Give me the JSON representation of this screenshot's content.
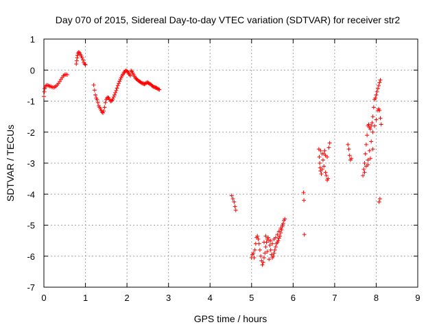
{
  "chart_data": {
    "type": "scatter",
    "title": "Day 070 of 2015, Sidereal Day-to-day VTEC variation (SDTVAR) for receiver str2",
    "xlabel": "GPS time / hours",
    "ylabel": "SDTVAR / TECUs",
    "xlim": [
      0,
      9
    ],
    "ylim": [
      -7,
      1
    ],
    "xticks": [
      0,
      1,
      2,
      3,
      4,
      5,
      6,
      7,
      8,
      9
    ],
    "yticks": [
      -7,
      -6,
      -5,
      -4,
      -3,
      -2,
      -1,
      0,
      1
    ],
    "grid": true,
    "marker": "+",
    "color": "#ff0000",
    "series": [
      {
        "name": "str2",
        "points": [
          [
            0.0,
            -0.85
          ],
          [
            0.01,
            -0.7
          ],
          [
            0.02,
            -0.6
          ],
          [
            0.03,
            -0.55
          ],
          [
            0.05,
            -0.5
          ],
          [
            0.08,
            -0.48
          ],
          [
            0.11,
            -0.5
          ],
          [
            0.14,
            -0.52
          ],
          [
            0.17,
            -0.53
          ],
          [
            0.2,
            -0.55
          ],
          [
            0.23,
            -0.56
          ],
          [
            0.26,
            -0.55
          ],
          [
            0.29,
            -0.52
          ],
          [
            0.32,
            -0.48
          ],
          [
            0.35,
            -0.43
          ],
          [
            0.38,
            -0.37
          ],
          [
            0.41,
            -0.3
          ],
          [
            0.44,
            -0.24
          ],
          [
            0.47,
            -0.18
          ],
          [
            0.5,
            -0.15
          ],
          [
            0.53,
            -0.14
          ],
          [
            0.56,
            -0.15
          ],
          [
            0.78,
            0.2
          ],
          [
            0.79,
            0.3
          ],
          [
            0.8,
            0.4
          ],
          [
            0.81,
            0.48
          ],
          [
            0.82,
            0.55
          ],
          [
            0.84,
            0.58
          ],
          [
            0.86,
            0.55
          ],
          [
            0.88,
            0.5
          ],
          [
            0.9,
            0.45
          ],
          [
            0.92,
            0.4
          ],
          [
            0.94,
            0.33
          ],
          [
            0.96,
            0.25
          ],
          [
            0.98,
            0.2
          ],
          [
            1.0,
            0.17
          ],
          [
            1.2,
            -0.48
          ],
          [
            1.22,
            -0.65
          ],
          [
            1.24,
            -0.8
          ],
          [
            1.26,
            -0.9
          ],
          [
            1.28,
            -0.95
          ],
          [
            1.3,
            -1.05
          ],
          [
            1.32,
            -1.15
          ],
          [
            1.34,
            -1.2
          ],
          [
            1.36,
            -1.25
          ],
          [
            1.38,
            -1.3
          ],
          [
            1.4,
            -1.35
          ],
          [
            1.42,
            -1.38
          ],
          [
            1.44,
            -1.32
          ],
          [
            1.46,
            -1.2
          ],
          [
            1.48,
            -1.05
          ],
          [
            1.5,
            -0.95
          ],
          [
            1.52,
            -0.9
          ],
          [
            1.54,
            -0.88
          ],
          [
            1.56,
            -0.9
          ],
          [
            1.58,
            -0.95
          ],
          [
            1.6,
            -1.0
          ],
          [
            1.62,
            -1.0
          ],
          [
            1.64,
            -0.98
          ],
          [
            1.66,
            -0.93
          ],
          [
            1.68,
            -0.87
          ],
          [
            1.7,
            -0.8
          ],
          [
            1.72,
            -0.73
          ],
          [
            1.74,
            -0.66
          ],
          [
            1.76,
            -0.58
          ],
          [
            1.78,
            -0.5
          ],
          [
            1.8,
            -0.43
          ],
          [
            1.82,
            -0.36
          ],
          [
            1.84,
            -0.3
          ],
          [
            1.86,
            -0.24
          ],
          [
            1.88,
            -0.19
          ],
          [
            1.9,
            -0.14
          ],
          [
            1.92,
            -0.1
          ],
          [
            1.94,
            -0.06
          ],
          [
            1.96,
            -0.03
          ],
          [
            1.98,
            -0.02
          ],
          [
            2.0,
            -0.03
          ],
          [
            2.02,
            -0.06
          ],
          [
            2.04,
            -0.1
          ],
          [
            2.06,
            -0.14
          ],
          [
            2.08,
            -0.18
          ],
          [
            2.1,
            -0.02
          ],
          [
            2.12,
            -0.05
          ],
          [
            2.14,
            -0.1
          ],
          [
            2.16,
            -0.15
          ],
          [
            2.18,
            -0.2
          ],
          [
            2.2,
            -0.25
          ],
          [
            2.22,
            -0.28
          ],
          [
            2.24,
            -0.3
          ],
          [
            2.26,
            -0.32
          ],
          [
            2.28,
            -0.35
          ],
          [
            2.3,
            -0.37
          ],
          [
            2.32,
            -0.38
          ],
          [
            2.34,
            -0.4
          ],
          [
            2.36,
            -0.42
          ],
          [
            2.38,
            -0.43
          ],
          [
            2.4,
            -0.44
          ],
          [
            2.42,
            -0.45
          ],
          [
            2.44,
            -0.44
          ],
          [
            2.46,
            -0.42
          ],
          [
            2.48,
            -0.4
          ],
          [
            2.5,
            -0.4
          ],
          [
            2.52,
            -0.42
          ],
          [
            2.54,
            -0.44
          ],
          [
            2.56,
            -0.45
          ],
          [
            2.58,
            -0.47
          ],
          [
            2.6,
            -0.5
          ],
          [
            2.62,
            -0.52
          ],
          [
            2.64,
            -0.54
          ],
          [
            2.66,
            -0.55
          ],
          [
            2.68,
            -0.56
          ],
          [
            2.7,
            -0.57
          ],
          [
            2.72,
            -0.58
          ],
          [
            2.74,
            -0.6
          ],
          [
            2.76,
            -0.62
          ],
          [
            2.78,
            -0.63
          ],
          [
            4.52,
            -4.05
          ],
          [
            4.55,
            -4.15
          ],
          [
            4.58,
            -4.25
          ],
          [
            4.6,
            -4.4
          ],
          [
            4.62,
            -4.52
          ],
          [
            5.0,
            -6.05
          ],
          [
            5.02,
            -5.95
          ],
          [
            5.04,
            -5.9
          ],
          [
            5.06,
            -6.05
          ],
          [
            5.08,
            -5.8
          ],
          [
            5.1,
            -5.6
          ],
          [
            5.12,
            -5.4
          ],
          [
            5.14,
            -5.35
          ],
          [
            5.16,
            -5.45
          ],
          [
            5.18,
            -5.6
          ],
          [
            5.2,
            -5.8
          ],
          [
            5.22,
            -6.0
          ],
          [
            5.24,
            -6.15
          ],
          [
            5.26,
            -6.28
          ],
          [
            5.28,
            -6.2
          ],
          [
            5.3,
            -6.05
          ],
          [
            5.32,
            -5.9
          ],
          [
            5.34,
            -5.7
          ],
          [
            5.36,
            -5.55
          ],
          [
            5.38,
            -5.45
          ],
          [
            5.4,
            -5.4
          ],
          [
            5.42,
            -5.5
          ],
          [
            5.44,
            -5.65
          ],
          [
            5.46,
            -5.8
          ],
          [
            5.48,
            -5.95
          ],
          [
            5.5,
            -6.05
          ],
          [
            5.52,
            -6.0
          ],
          [
            5.54,
            -5.9
          ],
          [
            5.56,
            -5.8
          ],
          [
            5.58,
            -5.7
          ],
          [
            5.6,
            -5.6
          ],
          [
            5.62,
            -5.55
          ],
          [
            5.64,
            -5.5
          ],
          [
            5.66,
            -5.42
          ],
          [
            5.68,
            -5.35
          ],
          [
            5.7,
            -5.25
          ],
          [
            5.72,
            -5.15
          ],
          [
            5.74,
            -5.05
          ],
          [
            5.76,
            -4.95
          ],
          [
            5.78,
            -4.85
          ],
          [
            5.8,
            -4.8
          ],
          [
            5.3,
            -5.55
          ],
          [
            5.34,
            -5.35
          ],
          [
            5.38,
            -5.85
          ],
          [
            5.42,
            -6.1
          ],
          [
            5.46,
            -5.5
          ],
          [
            5.5,
            -5.6
          ],
          [
            5.54,
            -5.45
          ],
          [
            5.58,
            -5.4
          ],
          [
            5.62,
            -5.3
          ],
          [
            5.66,
            -5.2
          ],
          [
            5.7,
            -5.1
          ],
          [
            5.74,
            -5.0
          ],
          [
            6.25,
            -3.95
          ],
          [
            6.26,
            -4.2
          ],
          [
            6.27,
            -5.3
          ],
          [
            6.62,
            -2.55
          ],
          [
            6.63,
            -2.8
          ],
          [
            6.64,
            -3.0
          ],
          [
            6.65,
            -3.15
          ],
          [
            6.66,
            -3.25
          ],
          [
            6.68,
            -3.35
          ],
          [
            6.7,
            -3.2
          ],
          [
            6.72,
            -2.9
          ],
          [
            6.74,
            -2.7
          ],
          [
            6.76,
            -2.6
          ],
          [
            6.78,
            -2.75
          ],
          [
            6.8,
            -3.4
          ],
          [
            6.82,
            -3.55
          ],
          [
            6.84,
            -3.5
          ],
          [
            6.86,
            -2.5
          ],
          [
            6.88,
            -2.35
          ],
          [
            6.66,
            -2.6
          ],
          [
            6.7,
            -2.7
          ],
          [
            6.74,
            -3.1
          ],
          [
            6.78,
            -3.3
          ],
          [
            6.82,
            -2.8
          ],
          [
            7.32,
            -2.4
          ],
          [
            7.34,
            -2.55
          ],
          [
            7.36,
            -2.75
          ],
          [
            7.38,
            -2.9
          ],
          [
            7.4,
            -2.85
          ],
          [
            7.68,
            -3.4
          ],
          [
            7.7,
            -3.2
          ],
          [
            7.72,
            -3.0
          ],
          [
            7.74,
            -2.7
          ],
          [
            7.76,
            -2.4
          ],
          [
            7.78,
            -2.1
          ],
          [
            7.8,
            -1.8
          ],
          [
            7.82,
            -1.75
          ],
          [
            7.84,
            -1.85
          ],
          [
            7.86,
            -1.9
          ],
          [
            7.88,
            -1.8
          ],
          [
            7.9,
            -1.7
          ],
          [
            7.92,
            -1.5
          ],
          [
            7.94,
            -1.2
          ],
          [
            7.96,
            -0.95
          ],
          [
            7.98,
            -0.9
          ],
          [
            8.0,
            -0.8
          ],
          [
            8.02,
            -0.7
          ],
          [
            8.04,
            -0.6
          ],
          [
            8.06,
            -0.5
          ],
          [
            8.08,
            -0.4
          ],
          [
            8.1,
            -0.32
          ],
          [
            7.72,
            -3.3
          ],
          [
            7.76,
            -3.1
          ],
          [
            7.8,
            -2.9
          ],
          [
            7.84,
            -2.6
          ],
          [
            7.88,
            -2.3
          ],
          [
            7.92,
            -2.0
          ],
          [
            7.96,
            -1.8
          ],
          [
            8.0,
            -1.6
          ],
          [
            8.04,
            -1.3
          ],
          [
            8.06,
            -1.25
          ],
          [
            8.08,
            -1.3
          ],
          [
            8.1,
            -1.55
          ],
          [
            8.12,
            -1.75
          ],
          [
            8.07,
            -4.25
          ],
          [
            8.09,
            -4.15
          ],
          [
            7.8,
            -3.05
          ],
          [
            7.86,
            -2.85
          ],
          [
            7.92,
            -2.55
          ]
        ]
      }
    ]
  }
}
